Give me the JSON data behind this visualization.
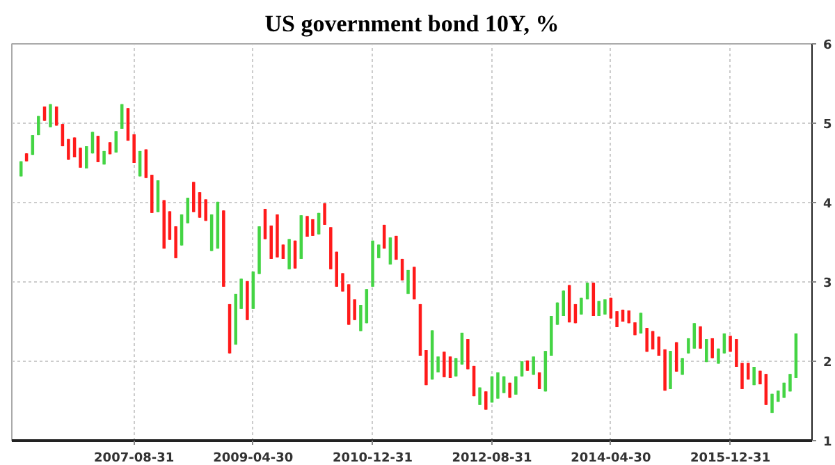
{
  "chart_data": {
    "type": "candlestick",
    "title": "US government bond 10Y, %",
    "x": [
      "2006-01-31",
      "2006-02-28",
      "2006-03-31",
      "2006-04-30",
      "2006-05-31",
      "2006-06-30",
      "2006-07-31",
      "2006-08-31",
      "2006-09-30",
      "2006-10-31",
      "2006-11-30",
      "2006-12-31",
      "2007-01-31",
      "2007-02-28",
      "2007-03-31",
      "2007-04-30",
      "2007-05-31",
      "2007-06-30",
      "2007-07-31",
      "2007-08-31",
      "2007-09-30",
      "2007-10-31",
      "2007-11-30",
      "2007-12-31",
      "2008-01-31",
      "2008-02-29",
      "2008-03-31",
      "2008-04-30",
      "2008-05-31",
      "2008-06-30",
      "2008-07-31",
      "2008-08-31",
      "2008-09-30",
      "2008-10-31",
      "2008-11-30",
      "2008-12-31",
      "2009-01-31",
      "2009-02-28",
      "2009-03-31",
      "2009-04-30",
      "2009-05-31",
      "2009-06-30",
      "2009-07-31",
      "2009-08-31",
      "2009-09-30",
      "2009-10-31",
      "2009-11-30",
      "2009-12-31",
      "2010-01-31",
      "2010-02-28",
      "2010-03-31",
      "2010-04-30",
      "2010-05-31",
      "2010-06-30",
      "2010-07-31",
      "2010-08-31",
      "2010-09-30",
      "2010-10-31",
      "2010-11-30",
      "2010-12-31",
      "2011-01-31",
      "2011-02-28",
      "2011-03-31",
      "2011-04-30",
      "2011-05-31",
      "2011-06-30",
      "2011-07-31",
      "2011-08-31",
      "2011-09-30",
      "2011-10-31",
      "2011-11-30",
      "2011-12-31",
      "2012-01-31",
      "2012-02-29",
      "2012-03-31",
      "2012-04-30",
      "2012-05-31",
      "2012-06-30",
      "2012-07-31",
      "2012-08-31",
      "2012-09-30",
      "2012-10-31",
      "2012-11-30",
      "2012-12-31",
      "2013-01-31",
      "2013-02-28",
      "2013-03-31",
      "2013-04-30",
      "2013-05-31",
      "2013-06-30",
      "2013-07-31",
      "2013-08-31",
      "2013-09-30",
      "2013-10-31",
      "2013-11-30",
      "2013-12-31",
      "2014-01-31",
      "2014-02-28",
      "2014-03-31",
      "2014-04-30",
      "2014-05-31",
      "2014-06-30",
      "2014-07-31",
      "2014-08-31",
      "2014-09-30",
      "2014-10-31",
      "2014-11-30",
      "2014-12-31",
      "2015-01-31",
      "2015-02-28",
      "2015-03-31",
      "2015-04-30",
      "2015-05-31",
      "2015-06-30",
      "2015-07-31",
      "2015-08-31",
      "2015-09-30",
      "2015-10-31",
      "2015-11-30",
      "2015-12-31",
      "2016-01-31",
      "2016-02-29",
      "2016-03-31",
      "2016-04-30",
      "2016-05-31",
      "2016-06-30",
      "2016-07-31",
      "2016-08-31",
      "2016-09-30",
      "2016-10-31",
      "2016-11-30"
    ],
    "ohlc": [
      [
        4.33,
        4.52,
        4.33,
        4.52
      ],
      [
        4.62,
        4.62,
        4.52,
        4.52
      ],
      [
        4.6,
        4.85,
        4.6,
        4.85
      ],
      [
        4.85,
        5.09,
        4.85,
        5.09
      ],
      [
        5.21,
        5.21,
        5.03,
        5.03
      ],
      [
        4.95,
        5.24,
        4.95,
        5.24
      ],
      [
        5.21,
        5.21,
        4.97,
        4.97
      ],
      [
        4.99,
        4.99,
        4.71,
        4.71
      ],
      [
        4.8,
        4.8,
        4.54,
        4.54
      ],
      [
        4.82,
        4.82,
        4.57,
        4.57
      ],
      [
        4.69,
        4.69,
        4.44,
        4.44
      ],
      [
        4.43,
        4.71,
        4.43,
        4.71
      ],
      [
        4.62,
        4.89,
        4.62,
        4.89
      ],
      [
        4.84,
        4.84,
        4.51,
        4.51
      ],
      [
        4.48,
        4.65,
        4.48,
        4.65
      ],
      [
        4.76,
        4.76,
        4.61,
        4.61
      ],
      [
        4.63,
        4.9,
        4.63,
        4.9
      ],
      [
        4.93,
        5.24,
        4.93,
        5.24
      ],
      [
        5.19,
        5.19,
        4.78,
        4.78
      ],
      [
        4.86,
        4.86,
        4.5,
        4.5
      ],
      [
        4.33,
        4.65,
        4.33,
        4.65
      ],
      [
        4.67,
        4.67,
        4.31,
        4.31
      ],
      [
        4.35,
        4.35,
        3.87,
        3.87
      ],
      [
        3.88,
        4.28,
        3.88,
        4.28
      ],
      [
        4.03,
        4.03,
        3.42,
        3.42
      ],
      [
        3.89,
        3.89,
        3.53,
        3.53
      ],
      [
        3.7,
        3.7,
        3.3,
        3.3
      ],
      [
        3.46,
        3.85,
        3.46,
        3.85
      ],
      [
        3.74,
        4.06,
        3.74,
        4.06
      ],
      [
        4.26,
        4.26,
        3.88,
        3.88
      ],
      [
        4.13,
        4.13,
        3.81,
        3.81
      ],
      [
        4.04,
        4.04,
        3.77,
        3.77
      ],
      [
        3.39,
        3.85,
        3.39,
        3.85
      ],
      [
        3.42,
        4.01,
        3.42,
        4.01
      ],
      [
        3.9,
        3.9,
        2.94,
        2.94
      ],
      [
        2.72,
        2.72,
        2.1,
        2.1
      ],
      [
        2.21,
        2.85,
        2.21,
        2.85
      ],
      [
        2.66,
        3.04,
        2.66,
        3.04
      ],
      [
        3.01,
        3.01,
        2.52,
        2.52
      ],
      [
        2.66,
        3.13,
        2.66,
        3.13
      ],
      [
        3.1,
        3.7,
        3.1,
        3.7
      ],
      [
        3.92,
        3.92,
        3.54,
        3.54
      ],
      [
        3.71,
        3.71,
        3.29,
        3.29
      ],
      [
        3.85,
        3.85,
        3.31,
        3.31
      ],
      [
        3.47,
        3.47,
        3.29,
        3.29
      ],
      [
        3.16,
        3.54,
        3.16,
        3.54
      ],
      [
        3.52,
        3.52,
        3.17,
        3.17
      ],
      [
        3.29,
        3.84,
        3.29,
        3.84
      ],
      [
        3.83,
        3.83,
        3.57,
        3.57
      ],
      [
        3.79,
        3.79,
        3.58,
        3.58
      ],
      [
        3.6,
        3.87,
        3.6,
        3.87
      ],
      [
        3.99,
        3.99,
        3.72,
        3.72
      ],
      [
        3.69,
        3.69,
        3.16,
        3.16
      ],
      [
        3.38,
        3.38,
        2.94,
        2.94
      ],
      [
        3.11,
        3.11,
        2.88,
        2.88
      ],
      [
        2.97,
        2.97,
        2.46,
        2.46
      ],
      [
        2.78,
        2.78,
        2.52,
        2.52
      ],
      [
        2.38,
        2.71,
        2.38,
        2.71
      ],
      [
        2.48,
        2.91,
        2.48,
        2.91
      ],
      [
        2.94,
        3.52,
        2.94,
        3.52
      ],
      [
        3.3,
        3.47,
        3.3,
        3.47
      ],
      [
        3.72,
        3.72,
        3.42,
        3.42
      ],
      [
        3.22,
        3.56,
        3.22,
        3.56
      ],
      [
        3.58,
        3.58,
        3.28,
        3.28
      ],
      [
        3.29,
        3.29,
        3.02,
        3.02
      ],
      [
        2.85,
        3.15,
        2.85,
        3.15
      ],
      [
        3.19,
        3.19,
        2.78,
        2.78
      ],
      [
        2.72,
        2.72,
        2.07,
        2.07
      ],
      [
        2.14,
        2.14,
        1.7,
        1.7
      ],
      [
        1.77,
        2.39,
        1.77,
        2.39
      ],
      [
        1.86,
        2.06,
        1.86,
        2.06
      ],
      [
        2.12,
        2.12,
        1.8,
        1.8
      ],
      [
        2.06,
        2.06,
        1.79,
        1.79
      ],
      [
        1.81,
        2.04,
        1.81,
        2.04
      ],
      [
        1.96,
        2.36,
        1.96,
        2.36
      ],
      [
        2.28,
        2.28,
        1.9,
        1.9
      ],
      [
        1.94,
        1.94,
        1.56,
        1.56
      ],
      [
        1.45,
        1.67,
        1.45,
        1.67
      ],
      [
        1.62,
        1.62,
        1.39,
        1.39
      ],
      [
        1.48,
        1.81,
        1.48,
        1.81
      ],
      [
        1.53,
        1.86,
        1.53,
        1.86
      ],
      [
        1.6,
        1.81,
        1.6,
        1.81
      ],
      [
        1.73,
        1.73,
        1.54,
        1.54
      ],
      [
        1.58,
        1.81,
        1.58,
        1.81
      ],
      [
        1.81,
        2.0,
        1.81,
        2.0
      ],
      [
        2.01,
        2.01,
        1.88,
        1.88
      ],
      [
        1.83,
        2.06,
        1.83,
        2.06
      ],
      [
        1.86,
        1.86,
        1.65,
        1.65
      ],
      [
        1.62,
        2.13,
        1.62,
        2.13
      ],
      [
        2.07,
        2.57,
        2.07,
        2.57
      ],
      [
        2.46,
        2.74,
        2.46,
        2.74
      ],
      [
        2.57,
        2.89,
        2.57,
        2.89
      ],
      [
        2.96,
        2.96,
        2.49,
        2.49
      ],
      [
        2.72,
        2.72,
        2.48,
        2.48
      ],
      [
        2.59,
        2.8,
        2.59,
        2.8
      ],
      [
        2.78,
        2.99,
        2.78,
        2.99
      ],
      [
        2.99,
        2.99,
        2.57,
        2.57
      ],
      [
        2.57,
        2.76,
        2.57,
        2.76
      ],
      [
        2.59,
        2.78,
        2.59,
        2.78
      ],
      [
        2.8,
        2.8,
        2.54,
        2.54
      ],
      [
        2.63,
        2.63,
        2.43,
        2.43
      ],
      [
        2.65,
        2.65,
        2.5,
        2.5
      ],
      [
        2.64,
        2.64,
        2.48,
        2.48
      ],
      [
        2.49,
        2.49,
        2.33,
        2.33
      ],
      [
        2.35,
        2.61,
        2.35,
        2.61
      ],
      [
        2.42,
        2.42,
        2.12,
        2.12
      ],
      [
        2.38,
        2.38,
        2.15,
        2.15
      ],
      [
        2.31,
        2.31,
        2.07,
        2.07
      ],
      [
        2.15,
        2.15,
        1.63,
        1.63
      ],
      [
        1.65,
        2.13,
        1.65,
        2.13
      ],
      [
        2.24,
        2.24,
        1.87,
        1.87
      ],
      [
        1.83,
        2.04,
        1.83,
        2.04
      ],
      [
        2.1,
        2.29,
        2.1,
        2.29
      ],
      [
        2.16,
        2.48,
        2.16,
        2.48
      ],
      [
        2.44,
        2.44,
        2.16,
        2.16
      ],
      [
        1.99,
        2.28,
        1.99,
        2.28
      ],
      [
        2.29,
        2.29,
        2.04,
        2.04
      ],
      [
        1.97,
        2.16,
        1.97,
        2.16
      ],
      [
        2.1,
        2.35,
        2.1,
        2.35
      ],
      [
        2.32,
        2.32,
        2.12,
        2.12
      ],
      [
        2.28,
        2.28,
        1.93,
        1.93
      ],
      [
        1.98,
        1.98,
        1.65,
        1.65
      ],
      [
        1.98,
        1.98,
        1.77,
        1.77
      ],
      [
        1.7,
        1.93,
        1.7,
        1.93
      ],
      [
        1.88,
        1.88,
        1.71,
        1.71
      ],
      [
        1.84,
        1.84,
        1.45,
        1.45
      ],
      [
        1.35,
        1.59,
        1.35,
        1.59
      ],
      [
        1.49,
        1.63,
        1.49,
        1.63
      ],
      [
        1.54,
        1.73,
        1.54,
        1.73
      ],
      [
        1.62,
        1.84,
        1.62,
        1.84
      ],
      [
        1.79,
        2.35,
        1.79,
        2.35
      ]
    ],
    "colors": [
      "#44d444",
      "#ff1a1a",
      "#44d444",
      "#44d444",
      "#ff1a1a",
      "#44d444",
      "#ff1a1a",
      "#ff1a1a",
      "#ff1a1a",
      "#ff1a1a",
      "#ff1a1a",
      "#44d444",
      "#44d444",
      "#ff1a1a",
      "#44d444",
      "#ff1a1a",
      "#44d444",
      "#44d444",
      "#ff1a1a",
      "#ff1a1a",
      "#44d444",
      "#ff1a1a",
      "#ff1a1a",
      "#44d444",
      "#ff1a1a",
      "#ff1a1a",
      "#ff1a1a",
      "#44d444",
      "#44d444",
      "#ff1a1a",
      "#ff1a1a",
      "#ff1a1a",
      "#44d444",
      "#44d444",
      "#ff1a1a",
      "#ff1a1a",
      "#44d444",
      "#44d444",
      "#ff1a1a",
      "#44d444",
      "#44d444",
      "#ff1a1a",
      "#ff1a1a",
      "#ff1a1a",
      "#ff1a1a",
      "#44d444",
      "#ff1a1a",
      "#44d444",
      "#ff1a1a",
      "#ff1a1a",
      "#44d444",
      "#ff1a1a",
      "#ff1a1a",
      "#ff1a1a",
      "#ff1a1a",
      "#ff1a1a",
      "#ff1a1a",
      "#44d444",
      "#44d444",
      "#44d444",
      "#44d444",
      "#ff1a1a",
      "#44d444",
      "#ff1a1a",
      "#ff1a1a",
      "#44d444",
      "#ff1a1a",
      "#ff1a1a",
      "#ff1a1a",
      "#44d444",
      "#44d444",
      "#ff1a1a",
      "#ff1a1a",
      "#44d444",
      "#44d444",
      "#ff1a1a",
      "#ff1a1a",
      "#44d444",
      "#ff1a1a",
      "#44d444",
      "#44d444",
      "#44d444",
      "#ff1a1a",
      "#44d444",
      "#44d444",
      "#ff1a1a",
      "#44d444",
      "#ff1a1a",
      "#44d444",
      "#44d444",
      "#44d444",
      "#44d444",
      "#ff1a1a",
      "#ff1a1a",
      "#44d444",
      "#44d444",
      "#ff1a1a",
      "#44d444",
      "#44d444",
      "#ff1a1a",
      "#ff1a1a",
      "#ff1a1a",
      "#ff1a1a",
      "#ff1a1a",
      "#44d444",
      "#ff1a1a",
      "#ff1a1a",
      "#ff1a1a",
      "#ff1a1a",
      "#44d444",
      "#ff1a1a",
      "#44d444",
      "#44d444",
      "#44d444",
      "#ff1a1a",
      "#44d444",
      "#ff1a1a",
      "#44d444",
      "#44d444",
      "#ff1a1a",
      "#ff1a1a",
      "#ff1a1a",
      "#ff1a1a",
      "#44d444",
      "#ff1a1a",
      "#ff1a1a",
      "#44d444",
      "#44d444",
      "#44d444",
      "#44d444",
      "#44d444"
    ],
    "xlim": [
      "2005-12-15",
      "2017-02-20"
    ],
    "xticks": [
      "2007-08-31",
      "2009-04-30",
      "2010-12-31",
      "2012-08-31",
      "2014-04-30",
      "2015-12-31"
    ],
    "ylim": [
      1,
      6
    ],
    "yticks": [
      1,
      2,
      3,
      4,
      5,
      6
    ],
    "grid": true
  }
}
